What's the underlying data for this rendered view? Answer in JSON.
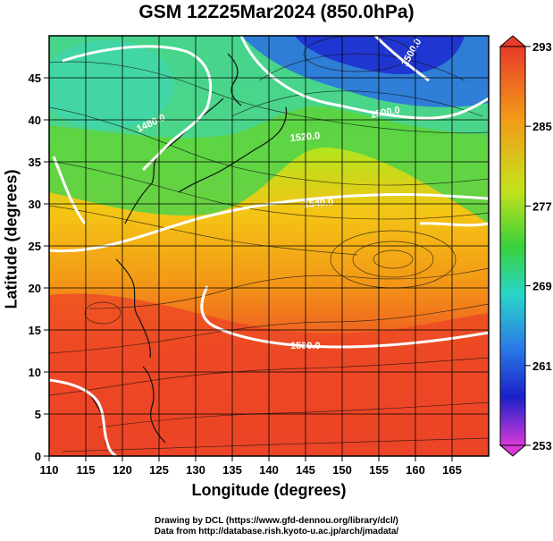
{
  "title": "GSM 12Z25Mar2024 (850.0hPa)",
  "map": {
    "xlabel": "Longitude (degrees)",
    "ylabel": "Latitude  (degrees)",
    "lon_range": [
      110,
      170
    ],
    "lat_range": [
      0,
      50
    ],
    "lon_ticks": [
      "110",
      "115",
      "120",
      "125",
      "130",
      "135",
      "140",
      "145",
      "150",
      "155",
      "160",
      "165"
    ],
    "lat_ticks": [
      "0",
      "5",
      "10",
      "15",
      "20",
      "25",
      "30",
      "35",
      "40",
      "45"
    ],
    "grid_step_degrees": 5,
    "contour_labels": [
      "1480.0",
      "1500.0",
      "1520.0",
      "1530.0",
      "1540.0",
      "1500.0"
    ],
    "colorbar": {
      "ticks": [
        "293",
        "285",
        "277",
        "269",
        "261",
        "253"
      ],
      "min": 253,
      "max": 293
    }
  },
  "credits": {
    "line1": "Drawing by DCL (https://www.gfd-dennou.org/library/dcl/)",
    "line2": "Data from http://database.rish.kyoto-u.ac.jp/arch/jmadata/"
  },
  "colors": {
    "warm": "#ee3a2a",
    "mid": "#5cd63a",
    "cold": "#1b2fd8",
    "contour": "#ffffff"
  }
}
